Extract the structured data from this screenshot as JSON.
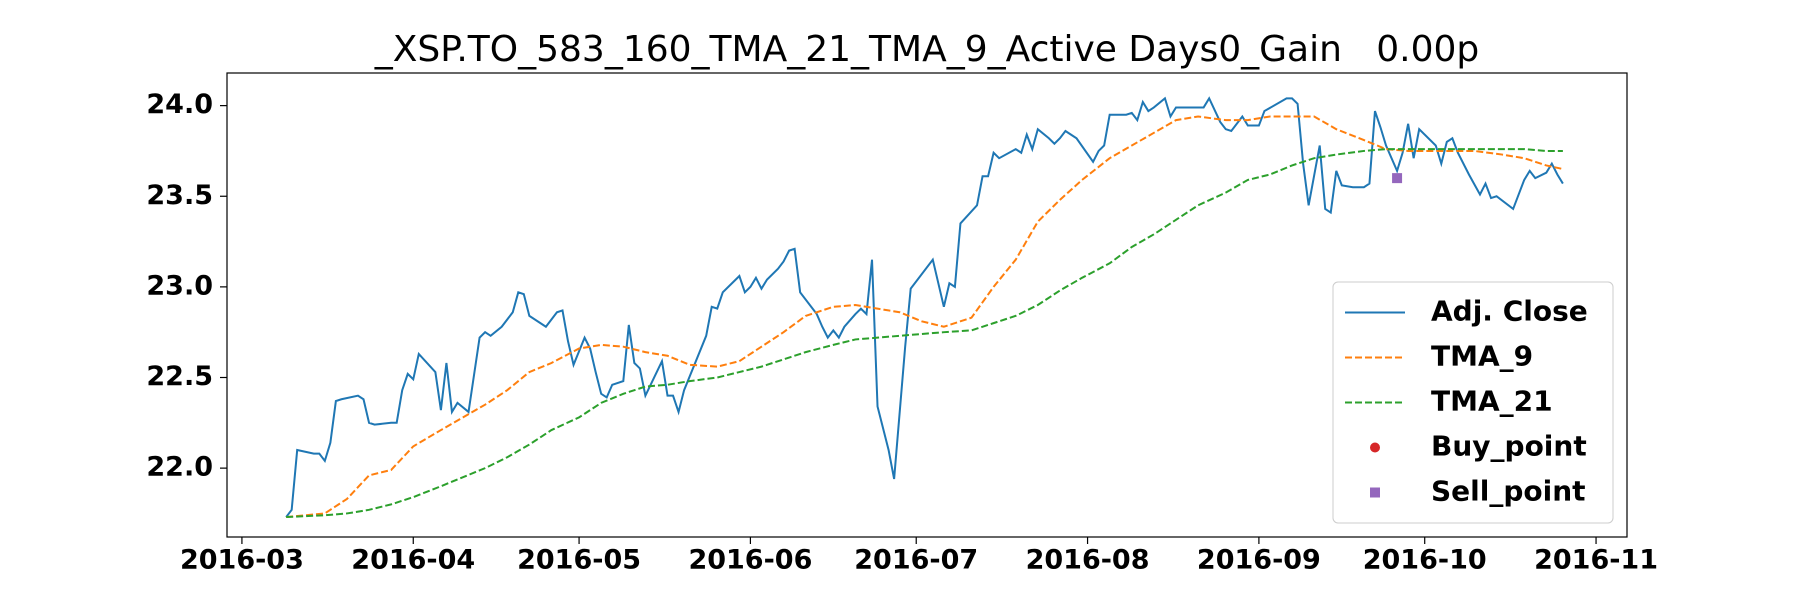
{
  "chart_data": {
    "type": "line",
    "title": "_XSP.TO_583_160_TMA_21_TMA_9_Active Days0_Gain   0.00p",
    "xlim": [
      16858.3,
      17111.6
    ],
    "ylim": [
      21.62,
      24.18
    ],
    "xticks": [
      {
        "value": 16861,
        "label": "2016-03"
      },
      {
        "value": 16892,
        "label": "2016-04"
      },
      {
        "value": 16922,
        "label": "2016-05"
      },
      {
        "value": 16953,
        "label": "2016-06"
      },
      {
        "value": 16983,
        "label": "2016-07"
      },
      {
        "value": 17014,
        "label": "2016-08"
      },
      {
        "value": 17045,
        "label": "2016-09"
      },
      {
        "value": 17075,
        "label": "2016-10"
      },
      {
        "value": 17106,
        "label": "2016-11"
      }
    ],
    "yticks": [
      {
        "value": 22,
        "label": "22.0"
      },
      22.5,
      {
        "value": 23,
        "label": "23.0"
      },
      23.5,
      {
        "value": 24,
        "label": "24.0"
      }
    ],
    "grid": false,
    "legend": "lower right",
    "series": [
      {
        "name": "Adj. Close",
        "color": "#1f77b4",
        "style": "solid",
        "x": [
          16869,
          16870,
          16871,
          16874,
          16875,
          16876,
          16877,
          16878,
          16879,
          16882,
          16883,
          16884,
          16885,
          16888,
          16889,
          16890,
          16891,
          16892,
          16893,
          16896,
          16897,
          16898,
          16899,
          16900,
          16902,
          16904,
          16905,
          16906,
          16908,
          16910,
          16911,
          16912,
          16913,
          16916,
          16918,
          16919,
          16920,
          16921,
          16923,
          16924,
          16925,
          16926,
          16927,
          16928,
          16930,
          16931,
          16932,
          16933,
          16934,
          16937,
          16938,
          16939,
          16940,
          16941,
          16945,
          16946,
          16947,
          16948,
          16951,
          16952,
          16953,
          16954,
          16955,
          16956,
          16958,
          16959,
          16960,
          16961,
          16962,
          16965,
          16966,
          16967,
          16968,
          16969,
          16970,
          16972,
          16973,
          16974,
          16975,
          16976,
          16978,
          16979,
          16981,
          16982,
          16986,
          16988,
          16989,
          16990,
          16991,
          16994,
          16995,
          16996,
          16997,
          16998,
          17001,
          17002,
          17003,
          17004,
          17005,
          17007,
          17008,
          17009,
          17010,
          17012,
          17015,
          17016,
          17017,
          17018,
          17021,
          17022,
          17023,
          17024,
          17025,
          17026,
          17028,
          17029,
          17030,
          17031,
          17035,
          17036,
          17038,
          17039,
          17040,
          17042,
          17043,
          17044,
          17045,
          17046,
          17050,
          17051,
          17052,
          17053,
          17054,
          17056,
          17057,
          17058,
          17059,
          17060,
          17062,
          17064,
          17065,
          17066,
          17067,
          17068,
          17070,
          17071,
          17072,
          17073,
          17074,
          17077,
          17078,
          17079,
          17080,
          17081,
          17083,
          17085,
          17086,
          17087,
          17088,
          17091,
          17093,
          17094,
          17095,
          17097,
          17098,
          17099,
          17100
        ],
        "values": [
          21.73,
          21.77,
          22.1,
          22.08,
          22.08,
          22.04,
          22.14,
          22.37,
          22.38,
          22.4,
          22.38,
          22.25,
          22.24,
          22.25,
          22.25,
          22.43,
          22.52,
          22.49,
          22.63,
          22.53,
          22.32,
          22.58,
          22.31,
          22.36,
          22.31,
          22.72,
          22.75,
          22.73,
          22.78,
          22.86,
          22.97,
          22.96,
          22.84,
          22.78,
          22.86,
          22.87,
          22.7,
          22.57,
          22.72,
          22.66,
          22.53,
          22.41,
          22.39,
          22.46,
          22.48,
          22.79,
          22.58,
          22.55,
          22.4,
          22.59,
          22.4,
          22.4,
          22.31,
          22.43,
          22.73,
          22.89,
          22.88,
          22.97,
          23.06,
          22.97,
          23.0,
          23.05,
          22.99,
          23.04,
          23.1,
          23.14,
          23.2,
          23.21,
          22.97,
          22.85,
          22.78,
          22.72,
          22.76,
          22.72,
          22.78,
          22.85,
          22.88,
          22.85,
          23.15,
          22.34,
          22.1,
          21.94,
          22.67,
          22.99,
          23.15,
          22.89,
          23.02,
          23.0,
          23.35,
          23.45,
          23.61,
          23.61,
          23.74,
          23.71,
          23.76,
          23.74,
          23.84,
          23.76,
          23.87,
          23.82,
          23.79,
          23.82,
          23.86,
          23.82,
          23.69,
          23.75,
          23.78,
          23.95,
          23.95,
          23.96,
          23.92,
          24.02,
          23.97,
          23.99,
          24.04,
          23.94,
          23.99,
          23.99,
          23.99,
          24.04,
          23.91,
          23.87,
          23.86,
          23.94,
          23.89,
          23.89,
          23.89,
          23.97,
          24.04,
          24.04,
          24.01,
          23.68,
          23.45,
          23.78,
          23.43,
          23.41,
          23.64,
          23.56,
          23.55,
          23.55,
          23.57,
          23.97,
          23.88,
          23.78,
          23.64,
          23.74,
          23.9,
          23.71,
          23.87,
          23.78,
          23.68,
          23.8,
          23.82,
          23.74,
          23.62,
          23.51,
          23.57,
          23.49,
          23.5,
          23.43,
          23.59,
          23.64,
          23.6,
          23.63,
          23.68,
          23.62,
          23.57
        ]
      },
      {
        "name": "TMA_9",
        "color": "#ff7f0e",
        "style": "dashed",
        "x": [
          16869,
          16876,
          16880,
          16884,
          16888,
          16892,
          16897,
          16901,
          16905,
          16909,
          16913,
          16917,
          16922,
          16926,
          16930,
          16934,
          16938,
          16942,
          16947,
          16951,
          16955,
          16959,
          16963,
          16968,
          16972,
          16976,
          16980,
          16984,
          16988,
          16993,
          16997,
          17001,
          17005,
          17009,
          17013,
          17018,
          17022,
          17026,
          17030,
          17034,
          17039,
          17043,
          17047,
          17051,
          17055,
          17059,
          17064,
          17068,
          17072,
          17076,
          17080,
          17084,
          17089,
          17093,
          17097,
          17100
        ],
        "values": [
          21.73,
          21.75,
          21.83,
          21.96,
          21.99,
          22.12,
          22.21,
          22.28,
          22.35,
          22.43,
          22.53,
          22.58,
          22.66,
          22.68,
          22.67,
          22.64,
          22.62,
          22.57,
          22.56,
          22.59,
          22.67,
          22.75,
          22.84,
          22.89,
          22.9,
          22.88,
          22.86,
          22.81,
          22.78,
          22.83,
          23.0,
          23.15,
          23.36,
          23.48,
          23.59,
          23.71,
          23.78,
          23.85,
          23.92,
          23.94,
          23.92,
          23.92,
          23.94,
          23.94,
          23.94,
          23.87,
          23.81,
          23.76,
          23.75,
          23.75,
          23.75,
          23.75,
          23.73,
          23.71,
          23.67,
          23.65
        ]
      },
      {
        "name": "TMA_21",
        "color": "#2ca02c",
        "style": "dashed",
        "x": [
          16869,
          16876,
          16880,
          16884,
          16888,
          16892,
          16897,
          16901,
          16905,
          16909,
          16913,
          16917,
          16922,
          16926,
          16930,
          16934,
          16938,
          16942,
          16947,
          16951,
          16955,
          16959,
          16963,
          16968,
          16972,
          16976,
          16980,
          16984,
          16988,
          16993,
          16997,
          17001,
          17005,
          17009,
          17013,
          17018,
          17022,
          17026,
          17030,
          17034,
          17039,
          17043,
          17047,
          17051,
          17055,
          17059,
          17064,
          17068,
          17072,
          17076,
          17080,
          17084,
          17089,
          17093,
          17097,
          17100
        ],
        "values": [
          21.73,
          21.74,
          21.75,
          21.77,
          21.8,
          21.84,
          21.9,
          21.95,
          22.0,
          22.06,
          22.13,
          22.21,
          22.28,
          22.36,
          22.41,
          22.45,
          22.46,
          22.48,
          22.5,
          22.53,
          22.56,
          22.6,
          22.64,
          22.68,
          22.71,
          22.72,
          22.73,
          22.74,
          22.75,
          22.76,
          22.8,
          22.84,
          22.9,
          22.98,
          23.05,
          23.13,
          23.22,
          23.29,
          23.37,
          23.45,
          23.52,
          23.59,
          23.62,
          23.67,
          23.71,
          23.73,
          23.75,
          23.76,
          23.76,
          23.76,
          23.76,
          23.76,
          23.76,
          23.76,
          23.75,
          23.75
        ]
      },
      {
        "name": "Buy_point",
        "color": "#d62728",
        "style": "none",
        "marker": "circle",
        "x": [],
        "values": []
      },
      {
        "name": "Sell_point",
        "color": "#9467bd",
        "style": "none",
        "marker": "square",
        "x": [
          17070
        ],
        "values": [
          23.6
        ]
      }
    ]
  }
}
